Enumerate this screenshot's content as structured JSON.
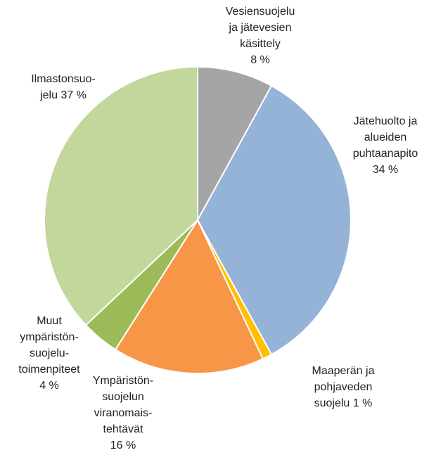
{
  "chart_data": {
    "type": "pie",
    "categories": [
      "Vesiensuojelu ja jätevesien käsittely",
      "Jätehuolto ja alueiden puhtaanapito",
      "Maaperän ja pohjaveden suojelu",
      "Ympäristön-suojelun viranomais-tehtävät",
      "Muut ympäristön-suojelu-toimenpiteet",
      "Ilmastonsuo-jelu"
    ],
    "values": [
      8,
      34,
      1,
      16,
      4,
      37
    ],
    "value_labels": [
      "8 %",
      "34 %",
      "1 %",
      "16 %",
      "4 %",
      "37 %"
    ],
    "colors": [
      "#a5a5a5",
      "#95b3d7",
      "#ffc000",
      "#f79646",
      "#9bbb59",
      "#c3d69b"
    ]
  }
}
